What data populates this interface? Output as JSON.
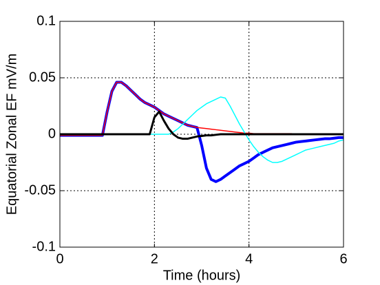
{
  "chart_data": {
    "type": "line",
    "xlabel": "Time (hours)",
    "ylabel": "Equatorial Zonal EF mV/m",
    "x": [
      0,
      0.1,
      0.2,
      0.3,
      0.4,
      0.5,
      0.6,
      0.7,
      0.8,
      0.9,
      1,
      1.1,
      1.2,
      1.3,
      1.4,
      1.5,
      1.6,
      1.7,
      1.8,
      1.9,
      2,
      2.1,
      2.2,
      2.3,
      2.4,
      2.5,
      2.6,
      2.7,
      2.8,
      2.9,
      3,
      3.1,
      3.2,
      3.3,
      3.4,
      3.5,
      3.6,
      3.7,
      3.8,
      3.9,
      4,
      4.1,
      4.2,
      4.3,
      4.4,
      4.5,
      4.6,
      4.7,
      4.8,
      4.9,
      5,
      5.1,
      5.2,
      5.3,
      5.4,
      5.5,
      5.6,
      5.7,
      5.8,
      5.9,
      6
    ],
    "series": [
      {
        "color": "#0000ff",
        "width": 4,
        "values": [
          -0.001,
          -0.001,
          -0.001,
          -0.001,
          -0.001,
          -0.001,
          -0.001,
          -0.001,
          -0.001,
          -0.001,
          0.02,
          0.038,
          0.046,
          0.046,
          0.043,
          0.039,
          0.035,
          0.031,
          0.028,
          0.026,
          0.024,
          0.021,
          0.018,
          0.016,
          0.014,
          0.012,
          0.01,
          0.008,
          0.007,
          0.006,
          -0.01,
          -0.03,
          -0.04,
          -0.042,
          -0.04,
          -0.037,
          -0.034,
          -0.031,
          -0.028,
          -0.026,
          -0.024,
          -0.021,
          -0.018,
          -0.016,
          -0.014,
          -0.012,
          -0.011,
          -0.01,
          -0.009,
          -0.008,
          -0.007,
          -0.0065,
          -0.006,
          -0.0055,
          -0.005,
          -0.0045,
          -0.004,
          -0.004,
          -0.0035,
          -0.003,
          -0.003
        ]
      },
      {
        "color": "#ff0000",
        "width": 1.5,
        "values": [
          -0.001,
          -0.001,
          -0.001,
          -0.001,
          -0.001,
          -0.001,
          -0.001,
          -0.001,
          -0.001,
          -0.001,
          0.02,
          0.038,
          0.046,
          0.046,
          0.043,
          0.039,
          0.035,
          0.031,
          0.028,
          0.026,
          0.024,
          0.021,
          0.018,
          0.016,
          0.014,
          0.012,
          0.01,
          0.008,
          0.007,
          0.006,
          0.0055,
          0.005,
          0.0045,
          0.004,
          0.0035,
          0.003,
          0.0025,
          0.002,
          0.0015,
          0.001,
          0.001,
          0.0005,
          0.0005,
          0.0005,
          0.0005,
          0.0005,
          0.0005,
          0.0005,
          0.0005,
          0.0005,
          0,
          0,
          0,
          0,
          0,
          0,
          0,
          0,
          0,
          0,
          0
        ]
      },
      {
        "color": "#00ffff",
        "width": 1.5,
        "values": [
          0,
          0,
          0,
          0,
          0,
          0,
          0,
          0,
          0,
          0,
          0,
          0,
          0,
          0,
          0,
          0,
          0,
          0,
          0,
          0,
          0,
          0,
          0,
          0,
          0.002,
          0.005,
          0.009,
          0.013,
          0.017,
          0.021,
          0.024,
          0.027,
          0.029,
          0.031,
          0.033,
          0.032,
          0.025,
          0.017,
          0.009,
          0.002,
          -0.005,
          -0.011,
          -0.016,
          -0.02,
          -0.023,
          -0.025,
          -0.025,
          -0.024,
          -0.022,
          -0.02,
          -0.018,
          -0.016,
          -0.014,
          -0.013,
          -0.012,
          -0.011,
          -0.01,
          -0.009,
          -0.008,
          -0.006,
          -0.005
        ]
      },
      {
        "color": "#000000",
        "width": 3,
        "values": [
          0,
          0,
          0,
          0,
          0,
          0,
          0,
          0,
          0,
          0,
          0,
          0,
          0,
          0,
          0,
          0,
          0,
          0,
          0,
          0,
          0.015,
          0.02,
          0.012,
          0.005,
          0,
          -0.003,
          -0.004,
          -0.004,
          -0.003,
          -0.002,
          -0.0015,
          -0.001,
          -0.001,
          -0.0005,
          0,
          0,
          0,
          0,
          0,
          0,
          0,
          0,
          0,
          0,
          0,
          0,
          0,
          0,
          0,
          0,
          0,
          0,
          0,
          0,
          0,
          0,
          0,
          0,
          0,
          0,
          0
        ]
      }
    ],
    "xlim": [
      0,
      6
    ],
    "xticks": [
      0,
      2,
      4,
      6
    ],
    "ylim": [
      -0.1,
      0.1
    ],
    "yticks": [
      -0.1,
      -0.05,
      0,
      0.05,
      0.1
    ],
    "grid": true
  }
}
